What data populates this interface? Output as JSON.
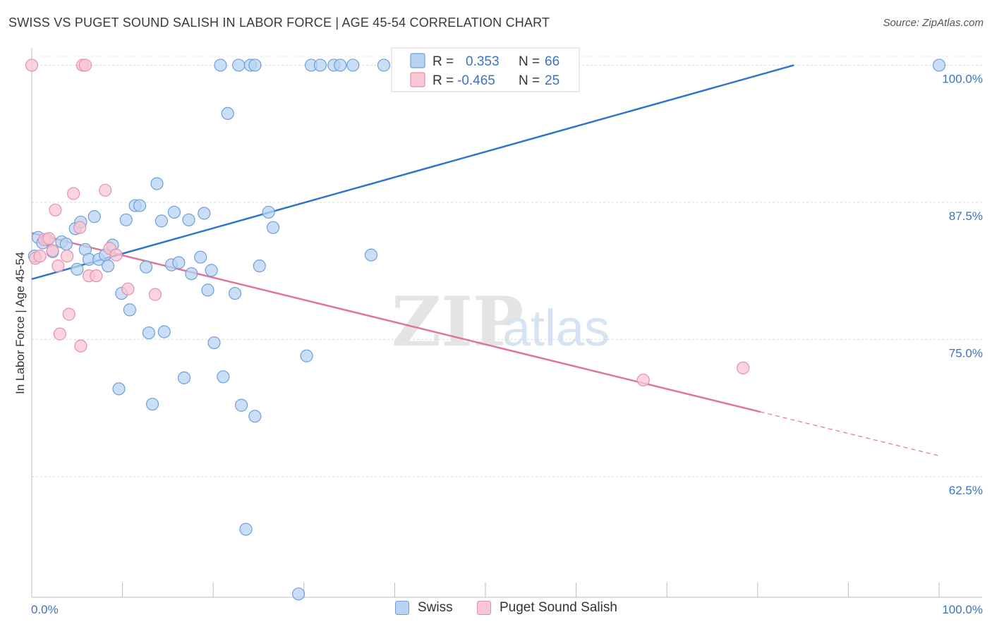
{
  "title": "SWISS VS PUGET SOUND SALISH IN LABOR FORCE | AGE 45-54 CORRELATION CHART",
  "source": "Source: ZipAtlas.com",
  "watermark": {
    "zip": "ZIP",
    "atlas": "atlas"
  },
  "colors": {
    "swiss_fill": "#b8d3f3",
    "swiss_stroke": "#6f9fd8",
    "swiss_line": "#2f74cc",
    "salish_fill": "#f8c6d4",
    "salish_stroke": "#e690ab",
    "salish_line": "#e0739a",
    "axis_label": "#3b72c4",
    "grid": "#d9d9d9"
  },
  "legend": {
    "rows": [
      {
        "r_label": "R =",
        "r_value": "0.353",
        "n_label": "N =",
        "n_value": "66"
      },
      {
        "r_label": "R =",
        "r_value": "-0.465",
        "n_label": "N =",
        "n_value": "25"
      }
    ]
  },
  "bottom_legend": [
    {
      "label": "Swiss"
    },
    {
      "label": "Puget Sound Salish"
    }
  ],
  "chart_data": {
    "type": "scatter",
    "title": "SWISS VS PUGET SOUND SALISH IN LABOR FORCE | AGE 45-54 CORRELATION CHART",
    "xlabel": "",
    "ylabel": "In Labor Force | Age 45-54",
    "xlim": [
      0,
      100
    ],
    "ylim": [
      51.5,
      100.8
    ],
    "x_tick_labels": [
      "0.0%",
      "100.0%"
    ],
    "y_ticks": [
      62.5,
      75.0,
      87.5,
      100.0
    ],
    "y_tick_labels": [
      "62.5%",
      "75.0%",
      "87.5%",
      "100.0%"
    ],
    "grid": "horizontal dashed",
    "legend_position": "top-center",
    "series": [
      {
        "name": "Swiss",
        "color": "#6f9fd8",
        "r": 0.353,
        "n": 66,
        "trend": {
          "x": [
            0,
            84.0
          ],
          "y": [
            80.5,
            100.0
          ]
        },
        "points": [
          [
            0.3,
            82.6
          ],
          [
            0.7,
            84.3
          ],
          [
            1.2,
            83.8
          ],
          [
            1.7,
            84.1
          ],
          [
            2.3,
            83.0
          ],
          [
            3.3,
            83.9
          ],
          [
            3.8,
            83.7
          ],
          [
            4.8,
            85.1
          ],
          [
            5.0,
            81.4
          ],
          [
            5.4,
            85.7
          ],
          [
            5.9,
            83.2
          ],
          [
            6.3,
            82.3
          ],
          [
            6.9,
            86.2
          ],
          [
            7.4,
            82.3
          ],
          [
            8.1,
            82.7
          ],
          [
            8.4,
            81.7
          ],
          [
            8.9,
            83.6
          ],
          [
            9.6,
            70.5
          ],
          [
            9.9,
            79.2
          ],
          [
            10.4,
            85.9
          ],
          [
            10.8,
            77.7
          ],
          [
            11.4,
            87.2
          ],
          [
            11.9,
            87.2
          ],
          [
            12.6,
            81.6
          ],
          [
            12.9,
            75.6
          ],
          [
            13.3,
            69.1
          ],
          [
            13.8,
            89.2
          ],
          [
            14.3,
            85.8
          ],
          [
            14.6,
            75.7
          ],
          [
            15.4,
            81.8
          ],
          [
            15.7,
            86.6
          ],
          [
            16.2,
            82.0
          ],
          [
            16.8,
            71.5
          ],
          [
            17.3,
            85.9
          ],
          [
            17.6,
            81.0
          ],
          [
            18.6,
            82.5
          ],
          [
            19.0,
            86.5
          ],
          [
            19.4,
            79.5
          ],
          [
            19.8,
            81.3
          ],
          [
            20.1,
            74.7
          ],
          [
            21.1,
            71.6
          ],
          [
            21.6,
            95.6
          ],
          [
            22.4,
            79.2
          ],
          [
            23.1,
            69.0
          ],
          [
            23.6,
            57.7
          ],
          [
            24.6,
            68.0
          ],
          [
            25.1,
            81.7
          ],
          [
            26.1,
            86.6
          ],
          [
            26.6,
            85.2
          ],
          [
            29.4,
            51.8
          ],
          [
            30.3,
            73.5
          ],
          [
            37.4,
            82.7
          ],
          [
            20.8,
            100.0
          ],
          [
            22.8,
            100.0
          ],
          [
            24.1,
            100.0
          ],
          [
            24.6,
            100.0
          ],
          [
            30.8,
            100.0
          ],
          [
            31.8,
            100.0
          ],
          [
            33.3,
            100.0
          ],
          [
            34.0,
            100.0
          ],
          [
            35.4,
            100.0
          ],
          [
            38.8,
            100.0
          ],
          [
            40.8,
            100.0
          ],
          [
            42.4,
            100.0
          ],
          [
            47.1,
            100.0
          ],
          [
            100.0,
            100.0
          ]
        ]
      },
      {
        "name": "Puget Sound Salish",
        "color": "#e690ab",
        "r": -0.465,
        "n": 25,
        "trend": {
          "x": [
            0,
            80.3
          ],
          "y": [
            84.7,
            68.4
          ]
        },
        "trend_dashed": {
          "x": [
            80.3,
            100.0
          ],
          "y": [
            68.4,
            64.4
          ]
        },
        "points": [
          [
            0.4,
            82.4
          ],
          [
            0.9,
            82.6
          ],
          [
            1.4,
            84.1
          ],
          [
            1.9,
            84.2
          ],
          [
            2.3,
            83.1
          ],
          [
            2.6,
            86.8
          ],
          [
            2.9,
            81.7
          ],
          [
            3.1,
            75.5
          ],
          [
            3.9,
            82.6
          ],
          [
            4.1,
            77.3
          ],
          [
            4.6,
            88.3
          ],
          [
            5.3,
            85.2
          ],
          [
            5.4,
            74.4
          ],
          [
            5.6,
            100.0
          ],
          [
            5.9,
            100.0
          ],
          [
            6.3,
            80.8
          ],
          [
            7.1,
            80.8
          ],
          [
            8.1,
            88.6
          ],
          [
            8.6,
            83.3
          ],
          [
            9.3,
            82.7
          ],
          [
            10.6,
            79.6
          ],
          [
            13.6,
            79.1
          ],
          [
            67.4,
            71.3
          ],
          [
            78.4,
            72.4
          ],
          [
            0.0,
            100.0
          ]
        ]
      }
    ]
  }
}
